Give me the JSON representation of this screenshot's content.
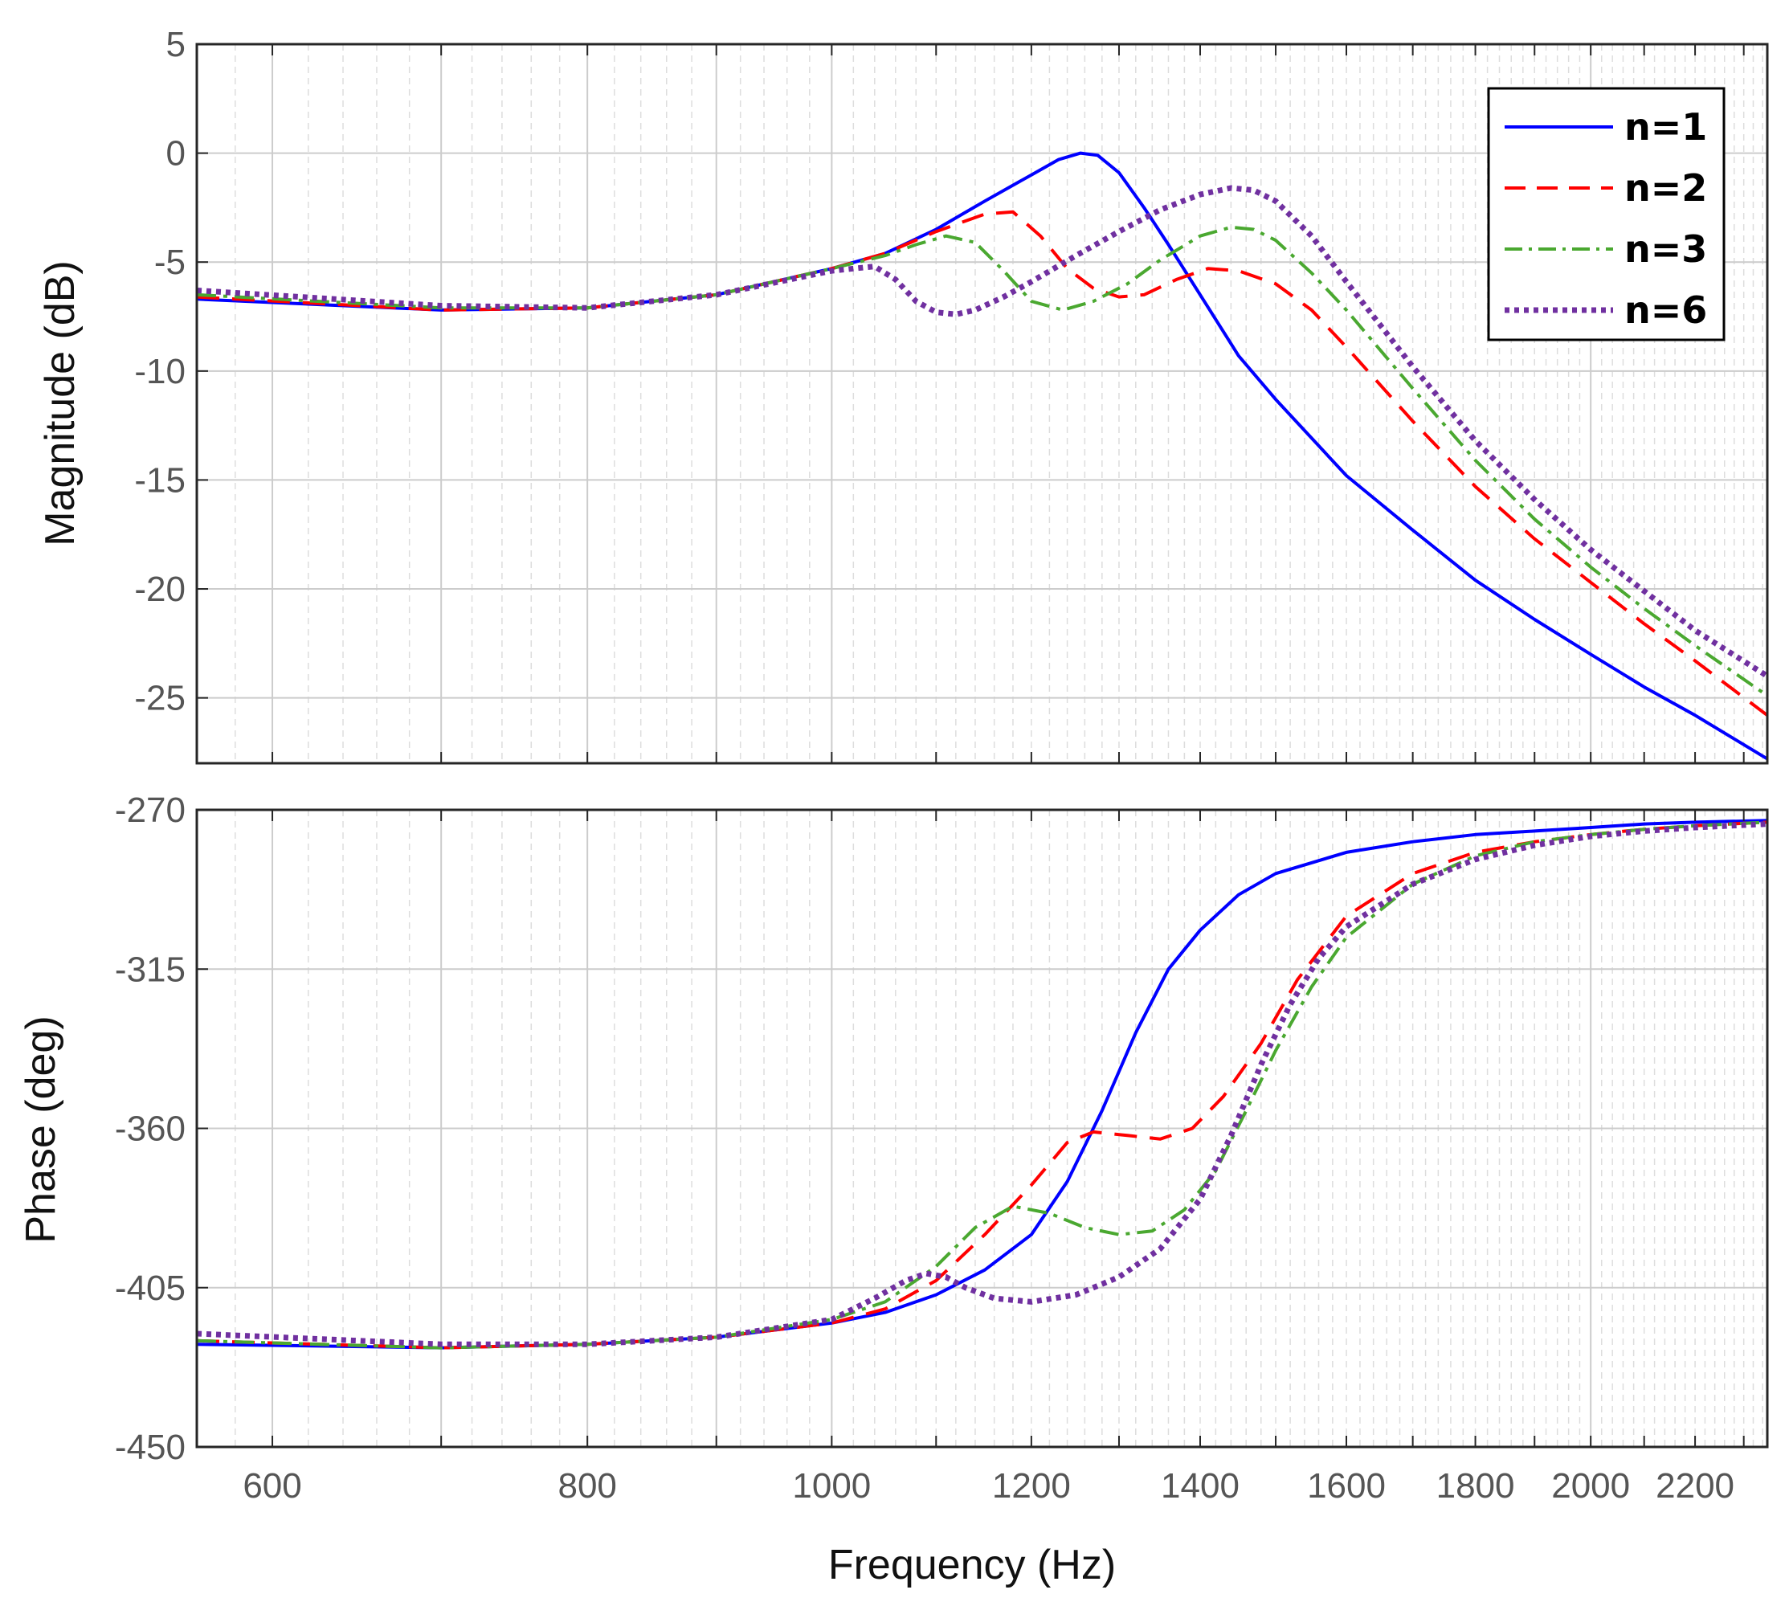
{
  "chart_data": [
    {
      "type": "line",
      "panel": "magnitude",
      "ylabel": "Magnitude (dB)",
      "xlabel": "",
      "xscale": "log",
      "xlim": [
        560,
        2350
      ],
      "ylim": [
        -28,
        5
      ],
      "yticks": [
        5,
        0,
        -5,
        -10,
        -15,
        -20,
        -25
      ],
      "ytick_labels": [
        "5",
        "0",
        "-5",
        "-10",
        "-15",
        "-20",
        "-25"
      ],
      "grid": true,
      "legend_position": "top-right",
      "series": [
        {
          "name": "n=1",
          "color": "#0000ff",
          "dash": "solid",
          "x": [
            560,
            700,
            800,
            900,
            1000,
            1050,
            1100,
            1150,
            1200,
            1230,
            1255,
            1275,
            1300,
            1330,
            1360,
            1400,
            1450,
            1500,
            1600,
            1700,
            1800,
            1900,
            2000,
            2100,
            2200,
            2350
          ],
          "y": [
            -6.7,
            -7.2,
            -7.1,
            -6.5,
            -5.3,
            -4.6,
            -3.5,
            -2.2,
            -1.0,
            -0.3,
            0.0,
            -0.1,
            -0.9,
            -2.5,
            -4.2,
            -6.5,
            -9.3,
            -11.3,
            -14.8,
            -17.3,
            -19.6,
            -21.4,
            -23.0,
            -24.5,
            -25.8,
            -27.8
          ]
        },
        {
          "name": "n=2",
          "color": "#ff0000",
          "dash": "dashed",
          "x": [
            560,
            700,
            800,
            900,
            1000,
            1050,
            1100,
            1150,
            1180,
            1210,
            1240,
            1270,
            1300,
            1330,
            1370,
            1410,
            1450,
            1500,
            1550,
            1600,
            1700,
            1800,
            1900,
            2000,
            2100,
            2200,
            2350
          ],
          "y": [
            -6.6,
            -7.2,
            -7.1,
            -6.5,
            -5.3,
            -4.6,
            -3.6,
            -2.8,
            -2.7,
            -3.8,
            -5.3,
            -6.2,
            -6.6,
            -6.5,
            -5.8,
            -5.3,
            -5.4,
            -6.0,
            -7.2,
            -8.9,
            -12.3,
            -15.3,
            -17.7,
            -19.7,
            -21.6,
            -23.3,
            -25.8
          ]
        },
        {
          "name": "n=3",
          "color": "#4aa830",
          "dash": "dashdot",
          "x": [
            560,
            700,
            800,
            900,
            1000,
            1050,
            1080,
            1110,
            1140,
            1170,
            1200,
            1235,
            1270,
            1310,
            1350,
            1400,
            1440,
            1470,
            1500,
            1550,
            1600,
            1700,
            1800,
            1900,
            2000,
            2100,
            2200,
            2350
          ],
          "y": [
            -6.5,
            -7.1,
            -7.1,
            -6.5,
            -5.3,
            -4.7,
            -4.2,
            -3.8,
            -4.1,
            -5.4,
            -6.8,
            -7.2,
            -6.8,
            -6.0,
            -4.9,
            -3.8,
            -3.4,
            -3.5,
            -4.0,
            -5.5,
            -7.2,
            -10.8,
            -14.1,
            -16.8,
            -19.0,
            -20.9,
            -22.6,
            -24.9
          ]
        },
        {
          "name": "n=6",
          "color": "#7030a0",
          "dash": "dotted",
          "x": [
            560,
            700,
            800,
            900,
            1000,
            1040,
            1060,
            1080,
            1100,
            1120,
            1140,
            1170,
            1200,
            1250,
            1300,
            1350,
            1400,
            1440,
            1470,
            1500,
            1550,
            1600,
            1700,
            1800,
            1900,
            2000,
            2100,
            2200,
            2350
          ],
          "y": [
            -6.3,
            -7.0,
            -7.1,
            -6.5,
            -5.4,
            -5.2,
            -5.8,
            -6.8,
            -7.3,
            -7.4,
            -7.2,
            -6.6,
            -5.9,
            -4.7,
            -3.6,
            -2.6,
            -1.9,
            -1.6,
            -1.7,
            -2.2,
            -3.8,
            -5.9,
            -9.8,
            -13.2,
            -15.9,
            -18.2,
            -20.1,
            -21.9,
            -24.0
          ]
        }
      ]
    },
    {
      "type": "line",
      "panel": "phase",
      "ylabel": "Phase (deg)",
      "xlabel": "Frequency (Hz)",
      "xscale": "log",
      "xlim": [
        560,
        2350
      ],
      "ylim": [
        -450,
        -270
      ],
      "yticks": [
        -270,
        -315,
        -360,
        -405,
        -450
      ],
      "ytick_labels": [
        "-270",
        "-315",
        "-360",
        "-405",
        "-450"
      ],
      "xticks": [
        600,
        800,
        1000,
        1200,
        1400,
        1600,
        1800,
        2000,
        2200
      ],
      "xtick_labels": [
        "600",
        "800",
        "1000",
        "1200",
        "1400",
        "1600",
        "1800",
        "2000",
        "2200"
      ],
      "grid": true,
      "series": [
        {
          "name": "n=1",
          "color": "#0000ff",
          "dash": "solid",
          "x": [
            560,
            700,
            800,
            900,
            1000,
            1050,
            1100,
            1150,
            1200,
            1240,
            1280,
            1320,
            1360,
            1400,
            1450,
            1500,
            1600,
            1700,
            1800,
            1900,
            2000,
            2100,
            2200,
            2350
          ],
          "y": [
            -421,
            -422,
            -421,
            -419,
            -415,
            -412,
            -407,
            -400,
            -390,
            -375,
            -355,
            -333,
            -315,
            -304,
            -294,
            -288,
            -282,
            -279,
            -277,
            -276,
            -275,
            -274,
            -273.5,
            -273
          ]
        },
        {
          "name": "n=2",
          "color": "#ff0000",
          "dash": "dashed",
          "x": [
            560,
            700,
            800,
            900,
            1000,
            1050,
            1100,
            1150,
            1200,
            1240,
            1270,
            1310,
            1350,
            1390,
            1430,
            1480,
            1530,
            1600,
            1700,
            1800,
            1900,
            2000,
            2100,
            2200,
            2350
          ],
          "y": [
            -420,
            -422,
            -421,
            -419,
            -415,
            -411,
            -403,
            -390,
            -376,
            -364,
            -361,
            -362,
            -363,
            -360,
            -351,
            -336,
            -318,
            -300,
            -288,
            -282,
            -279,
            -277,
            -275.5,
            -274.5,
            -273.5
          ]
        },
        {
          "name": "n=3",
          "color": "#4aa830",
          "dash": "dashdot",
          "x": [
            560,
            700,
            800,
            900,
            1000,
            1050,
            1100,
            1140,
            1180,
            1220,
            1260,
            1300,
            1340,
            1380,
            1420,
            1460,
            1500,
            1550,
            1600,
            1700,
            1800,
            1900,
            2000,
            2100,
            2200,
            2350
          ],
          "y": [
            -420,
            -422,
            -421,
            -419,
            -414,
            -409,
            -399,
            -388,
            -382,
            -384,
            -388,
            -390,
            -389,
            -383,
            -372,
            -355,
            -338,
            -320,
            -306,
            -291,
            -283,
            -279,
            -277,
            -275.5,
            -274.5,
            -273.5
          ]
        },
        {
          "name": "n=6",
          "color": "#7030a0",
          "dash": "dotted",
          "x": [
            560,
            700,
            800,
            900,
            1000,
            1040,
            1070,
            1090,
            1110,
            1130,
            1160,
            1200,
            1250,
            1300,
            1350,
            1400,
            1440,
            1480,
            1520,
            1560,
            1600,
            1700,
            1800,
            1900,
            2000,
            2100,
            2200,
            2350
          ],
          "y": [
            -418,
            -421,
            -421,
            -419,
            -414,
            -408,
            -403,
            -401,
            -402,
            -405,
            -408,
            -409,
            -407,
            -402,
            -394,
            -380,
            -362,
            -342,
            -325,
            -312,
            -303,
            -291,
            -284,
            -280,
            -277.5,
            -276,
            -275,
            -274
          ]
        }
      ]
    }
  ]
}
